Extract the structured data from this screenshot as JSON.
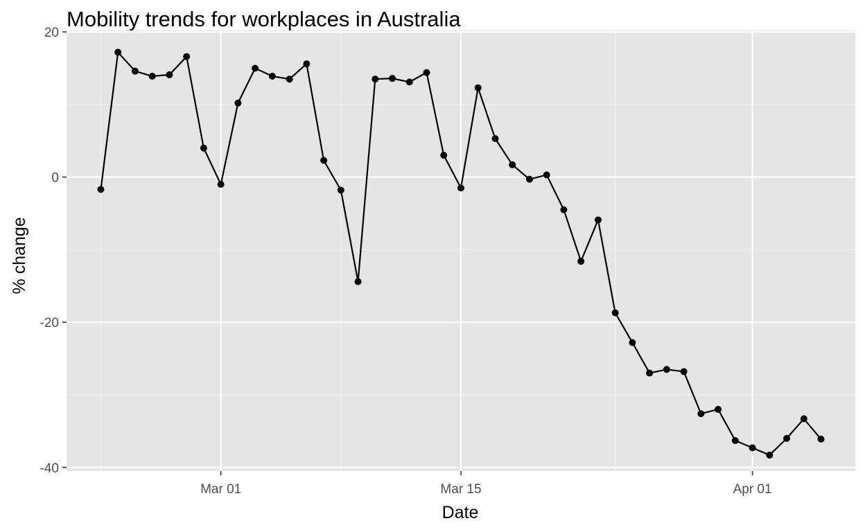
{
  "chart_data": {
    "type": "line",
    "title": "Mobility trends for workplaces in Australia",
    "xlabel": "Date",
    "ylabel": "% change",
    "x_start": "2020-02-23",
    "xlim": [
      "2020-02-21",
      "2020-04-07"
    ],
    "ylim": [
      -40.5,
      20.2
    ],
    "x_ticks": [
      {
        "date": "2020-03-01",
        "label": "Mar 01"
      },
      {
        "date": "2020-03-15",
        "label": "Mar 15"
      },
      {
        "date": "2020-04-01",
        "label": "Apr 01"
      }
    ],
    "x_minor_ticks": [
      "2020-02-23",
      "2020-03-08",
      "2020-03-24"
    ],
    "y_ticks": [
      {
        "value": -40,
        "label": "-40"
      },
      {
        "value": -20,
        "label": "-20"
      },
      {
        "value": 0,
        "label": "0"
      },
      {
        "value": 20,
        "label": "20"
      }
    ],
    "y_minor_ticks": [
      -30,
      -10,
      10
    ],
    "grid": true,
    "series": [
      {
        "values": [
          -1.7,
          17.2,
          14.6,
          13.9,
          14.1,
          16.6,
          4.0,
          -1.0,
          10.2,
          15.0,
          13.9,
          13.5,
          15.6,
          2.3,
          -1.8,
          -14.4,
          13.5,
          13.6,
          13.1,
          14.4,
          3.0,
          -1.5,
          12.3,
          5.3,
          1.7,
          -0.3,
          0.3,
          -4.5,
          -11.6,
          -5.9,
          -18.7,
          -22.8,
          -27.0,
          -26.5,
          -26.8,
          -32.6,
          -32.0,
          -36.3,
          -37.3,
          -38.3,
          -36.0,
          -33.3,
          -36.1
        ]
      }
    ],
    "colors": {
      "panel_background": "#e5e5e5",
      "grid_major": "#ffffff",
      "grid_minor": "#f2f2f2",
      "line": "#000000",
      "points": "#000000",
      "tick_label": "#4d4d4d",
      "tick_mark": "#333333"
    }
  }
}
